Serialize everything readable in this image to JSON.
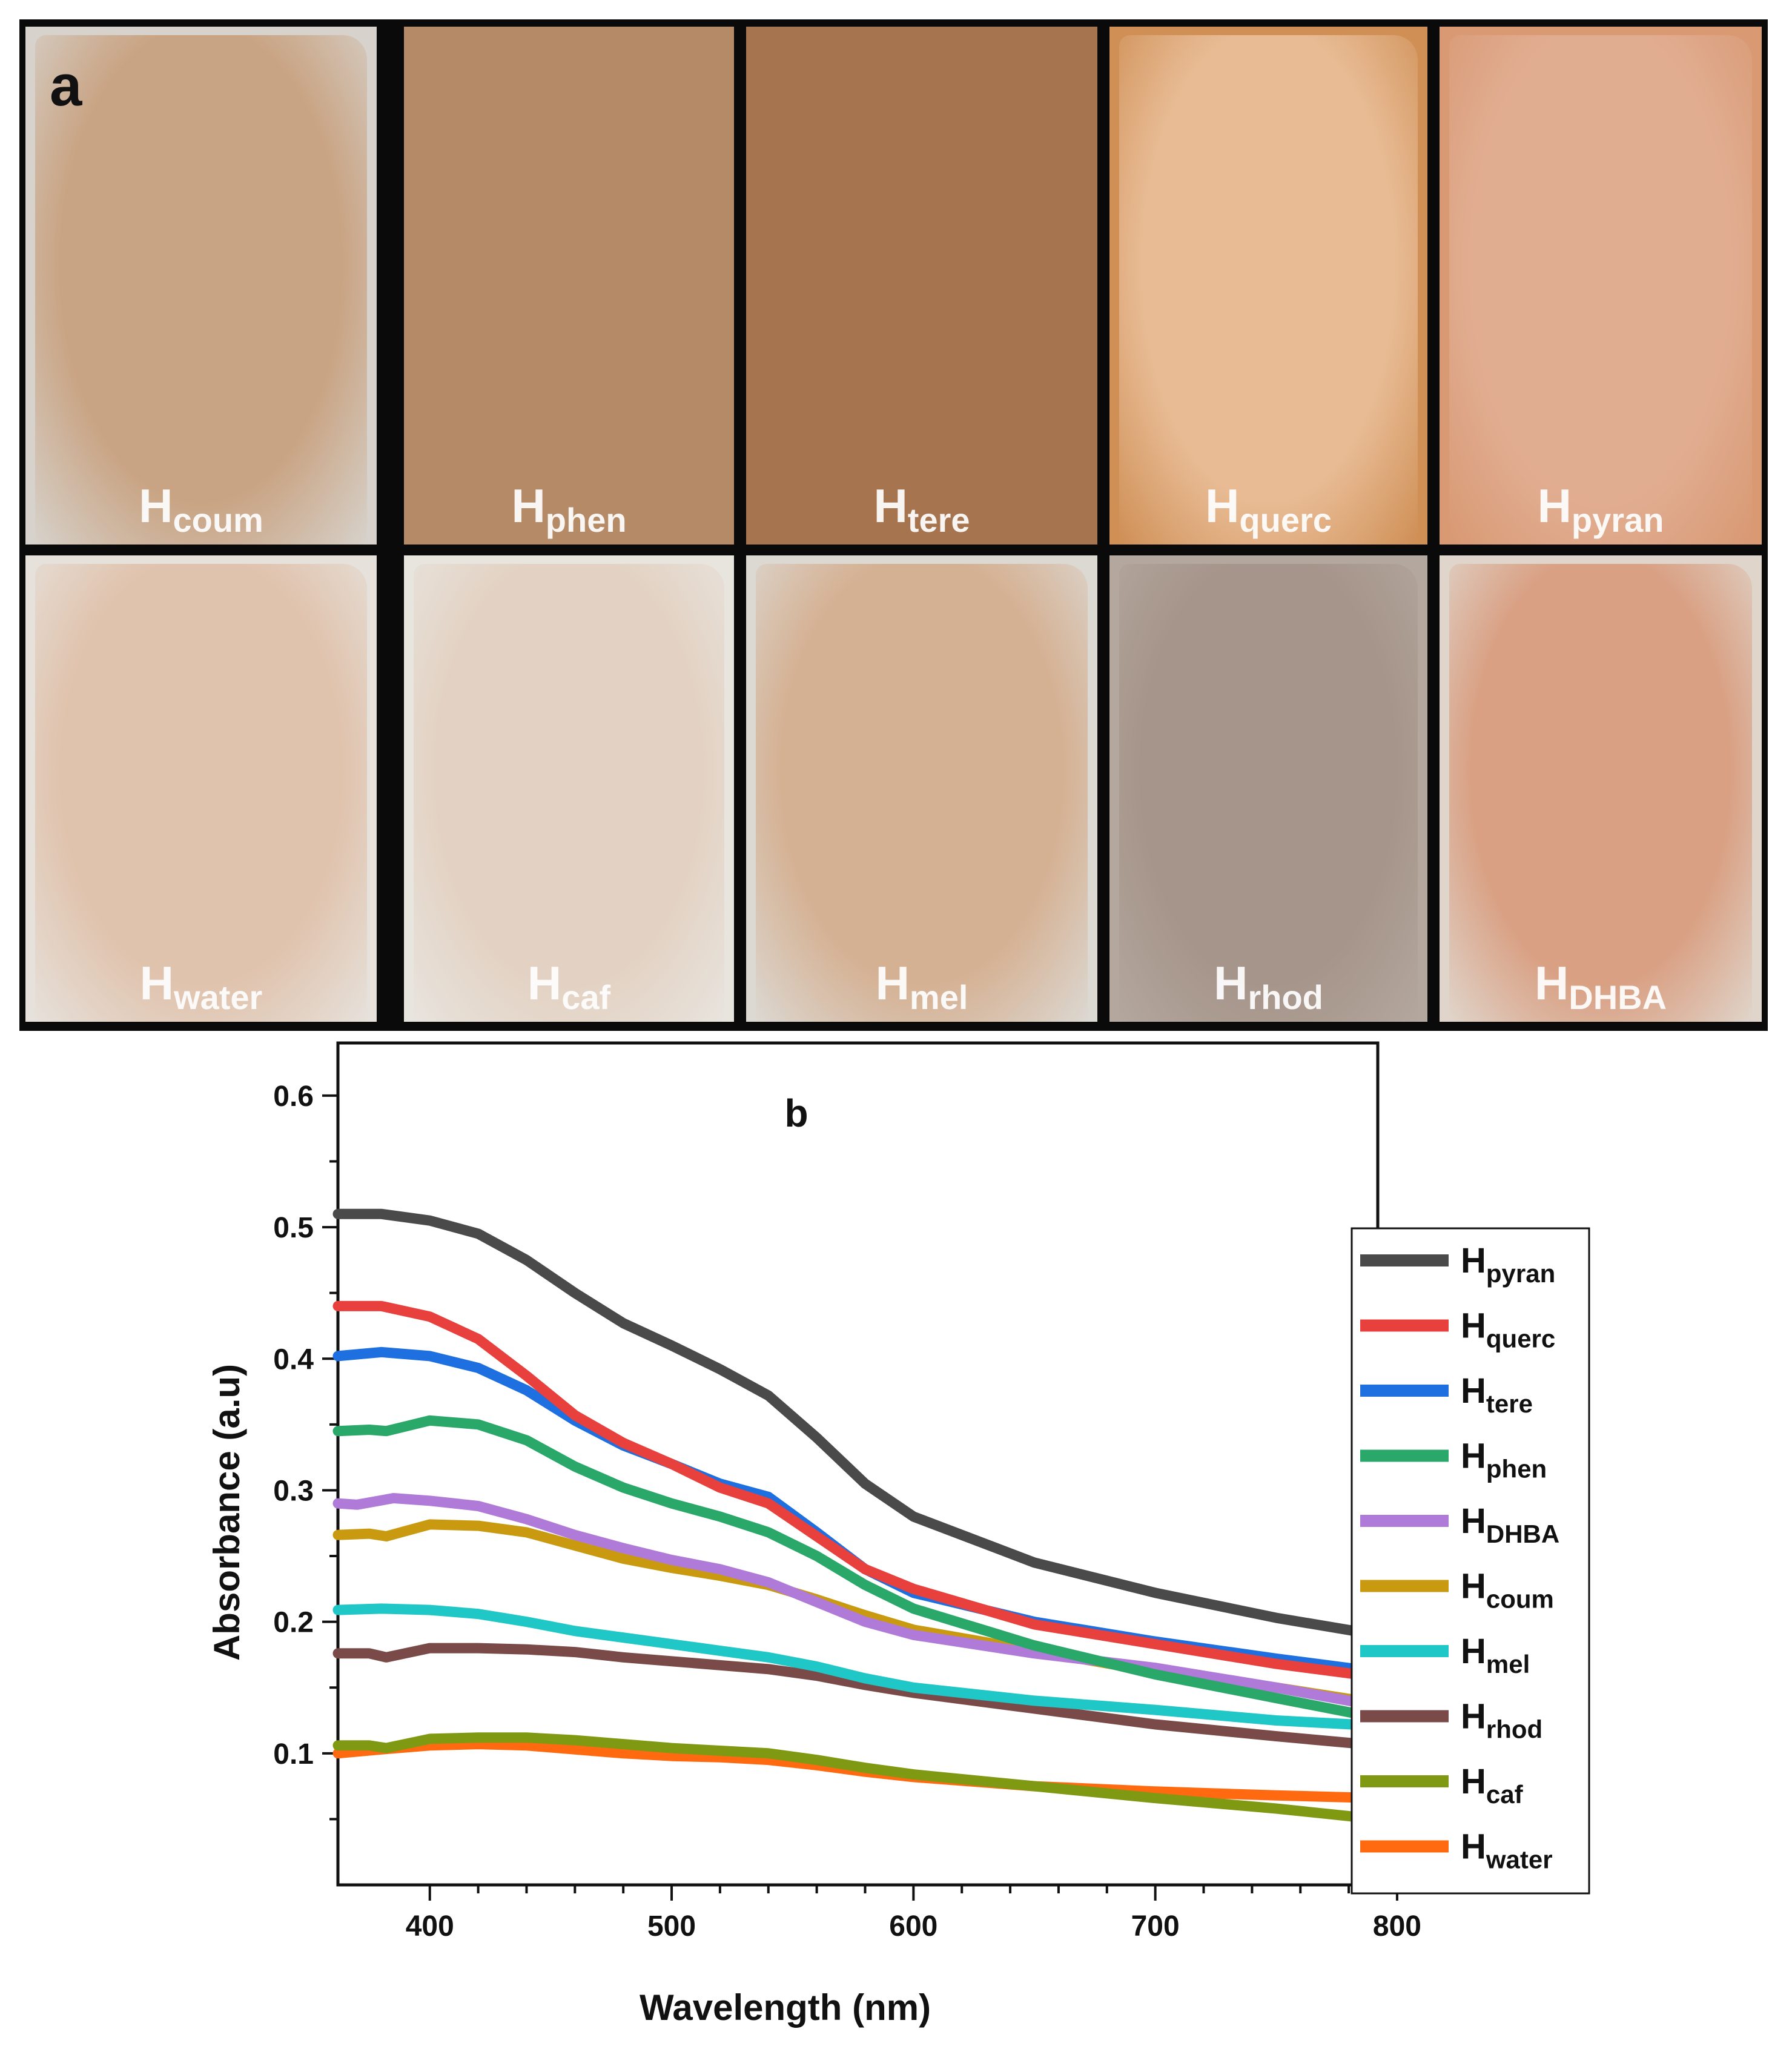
{
  "panel_a": {
    "letter": "a",
    "tiles": [
      {
        "label_main": "H",
        "label_sub": "coum",
        "color": "#c9a484",
        "edge": "#d7d2cb"
      },
      {
        "label_main": "H",
        "label_sub": "phen",
        "color": "#b58a66",
        "edge": "#b58a66"
      },
      {
        "label_main": "H",
        "label_sub": "tere",
        "color": "#a67550",
        "edge": "#a67550"
      },
      {
        "label_main": "H",
        "label_sub": "querc",
        "color": "#e8bb94",
        "edge": "#cf8f55"
      },
      {
        "label_main": "H",
        "label_sub": "pyran",
        "color": "#e1ad91",
        "edge": "#d89973"
      },
      {
        "label_main": "H",
        "label_sub": "water",
        "color": "#e0c3ad",
        "edge": "#e6e1db"
      },
      {
        "label_main": "H",
        "label_sub": "caf",
        "color": "#e3d2c3",
        "edge": "#e8e4de"
      },
      {
        "label_main": "H",
        "label_sub": "mel",
        "color": "#d5b193",
        "edge": "#dcd8d2"
      },
      {
        "label_main": "H",
        "label_sub": "rhod",
        "color": "#a6958a",
        "edge": "#b3a79e"
      },
      {
        "label_main": "H",
        "label_sub": "DHBA",
        "color": "#d9a083",
        "edge": "#e0d5cb"
      }
    ]
  },
  "chart_data": {
    "type": "line",
    "panel_letter": "b",
    "xlabel": "Wavelength (nm)",
    "ylabel": "Absorbance (a.u)",
    "xlim": [
      362,
      792
    ],
    "ylim": [
      0.0,
      0.64
    ],
    "xticks": [
      400,
      500,
      600,
      700,
      800
    ],
    "yticks": [
      0.1,
      0.2,
      0.3,
      0.4,
      0.5,
      0.6
    ],
    "ytick_labels": [
      "0.1",
      "0.2",
      "0.3",
      "0.4",
      "0.5",
      "0.6"
    ],
    "legend_position": "right",
    "series": [
      {
        "name_main": "H",
        "name_sub": "pyran",
        "color": "#4a4a4a",
        "x": [
          362,
          380,
          400,
          420,
          440,
          460,
          480,
          500,
          520,
          540,
          560,
          580,
          600,
          650,
          700,
          750,
          792
        ],
        "y": [
          0.51,
          0.51,
          0.505,
          0.495,
          0.475,
          0.45,
          0.427,
          0.41,
          0.392,
          0.372,
          0.34,
          0.305,
          0.28,
          0.245,
          0.222,
          0.203,
          0.19
        ]
      },
      {
        "name_main": "H",
        "name_sub": "querc",
        "color": "#e8403d",
        "x": [
          362,
          380,
          400,
          420,
          440,
          460,
          480,
          500,
          520,
          540,
          560,
          580,
          600,
          650,
          700,
          750,
          792
        ],
        "y": [
          0.44,
          0.44,
          0.432,
          0.415,
          0.387,
          0.357,
          0.336,
          0.32,
          0.302,
          0.29,
          0.265,
          0.24,
          0.225,
          0.198,
          0.183,
          0.168,
          0.158
        ]
      },
      {
        "name_main": "H",
        "name_sub": "tere",
        "color": "#1e6fe0",
        "x": [
          362,
          380,
          400,
          420,
          440,
          460,
          480,
          500,
          520,
          540,
          560,
          580,
          600,
          650,
          700,
          750,
          792
        ],
        "y": [
          0.402,
          0.405,
          0.402,
          0.393,
          0.376,
          0.353,
          0.334,
          0.32,
          0.305,
          0.295,
          0.268,
          0.24,
          0.222,
          0.2,
          0.185,
          0.172,
          0.162
        ]
      },
      {
        "name_main": "H",
        "name_sub": "phen",
        "color": "#2aa86a",
        "x": [
          362,
          375,
          382,
          400,
          420,
          440,
          460,
          480,
          500,
          520,
          540,
          560,
          580,
          600,
          650,
          700,
          750,
          792
        ],
        "y": [
          0.345,
          0.346,
          0.345,
          0.353,
          0.35,
          0.338,
          0.318,
          0.302,
          0.29,
          0.28,
          0.268,
          0.25,
          0.228,
          0.21,
          0.182,
          0.16,
          0.142,
          0.127
        ]
      },
      {
        "name_main": "H",
        "name_sub": "DHBA",
        "color": "#b07ad8",
        "x": [
          362,
          370,
          385,
          400,
          420,
          440,
          460,
          480,
          500,
          520,
          540,
          560,
          580,
          600,
          650,
          700,
          750,
          792
        ],
        "y": [
          0.29,
          0.289,
          0.294,
          0.292,
          0.288,
          0.278,
          0.266,
          0.256,
          0.247,
          0.24,
          0.23,
          0.215,
          0.2,
          0.19,
          0.176,
          0.165,
          0.15,
          0.136
        ]
      },
      {
        "name_main": "H",
        "name_sub": "coum",
        "color": "#c99a10",
        "x": [
          362,
          375,
          382,
          400,
          420,
          440,
          460,
          480,
          500,
          520,
          540,
          560,
          580,
          600,
          650,
          700,
          750,
          792
        ],
        "y": [
          0.266,
          0.267,
          0.265,
          0.274,
          0.273,
          0.268,
          0.258,
          0.248,
          0.241,
          0.235,
          0.228,
          0.217,
          0.205,
          0.194,
          0.178,
          0.162,
          0.15,
          0.138
        ]
      },
      {
        "name_main": "H",
        "name_sub": "mel",
        "color": "#1fc7c7",
        "x": [
          362,
          380,
          400,
          420,
          440,
          460,
          480,
          500,
          520,
          540,
          560,
          580,
          600,
          650,
          700,
          750,
          792
        ],
        "y": [
          0.209,
          0.21,
          0.209,
          0.206,
          0.2,
          0.193,
          0.188,
          0.183,
          0.178,
          0.173,
          0.166,
          0.157,
          0.15,
          0.14,
          0.133,
          0.125,
          0.121
        ]
      },
      {
        "name_main": "H",
        "name_sub": "rhod",
        "color": "#7a4a48",
        "x": [
          362,
          375,
          382,
          400,
          420,
          440,
          460,
          480,
          500,
          520,
          540,
          560,
          580,
          600,
          650,
          700,
          750,
          792
        ],
        "y": [
          0.176,
          0.176,
          0.173,
          0.18,
          0.18,
          0.179,
          0.177,
          0.173,
          0.17,
          0.167,
          0.164,
          0.159,
          0.152,
          0.146,
          0.134,
          0.122,
          0.113,
          0.106
        ]
      },
      {
        "name_main": "H",
        "name_sub": "caf",
        "color": "#7f9a12",
        "x": [
          362,
          375,
          382,
          400,
          420,
          440,
          460,
          480,
          500,
          520,
          540,
          560,
          580,
          600,
          650,
          700,
          750,
          792
        ],
        "y": [
          0.106,
          0.106,
          0.104,
          0.111,
          0.112,
          0.112,
          0.11,
          0.107,
          0.104,
          0.102,
          0.1,
          0.095,
          0.089,
          0.084,
          0.075,
          0.066,
          0.058,
          0.05
        ]
      },
      {
        "name_main": "H",
        "name_sub": "water",
        "color": "#ff6a10",
        "x": [
          362,
          380,
          400,
          420,
          440,
          460,
          480,
          500,
          520,
          540,
          560,
          580,
          600,
          650,
          700,
          750,
          792
        ],
        "y": [
          0.1,
          0.103,
          0.106,
          0.107,
          0.106,
          0.103,
          0.1,
          0.098,
          0.097,
          0.095,
          0.091,
          0.086,
          0.082,
          0.075,
          0.071,
          0.068,
          0.066
        ]
      }
    ]
  }
}
